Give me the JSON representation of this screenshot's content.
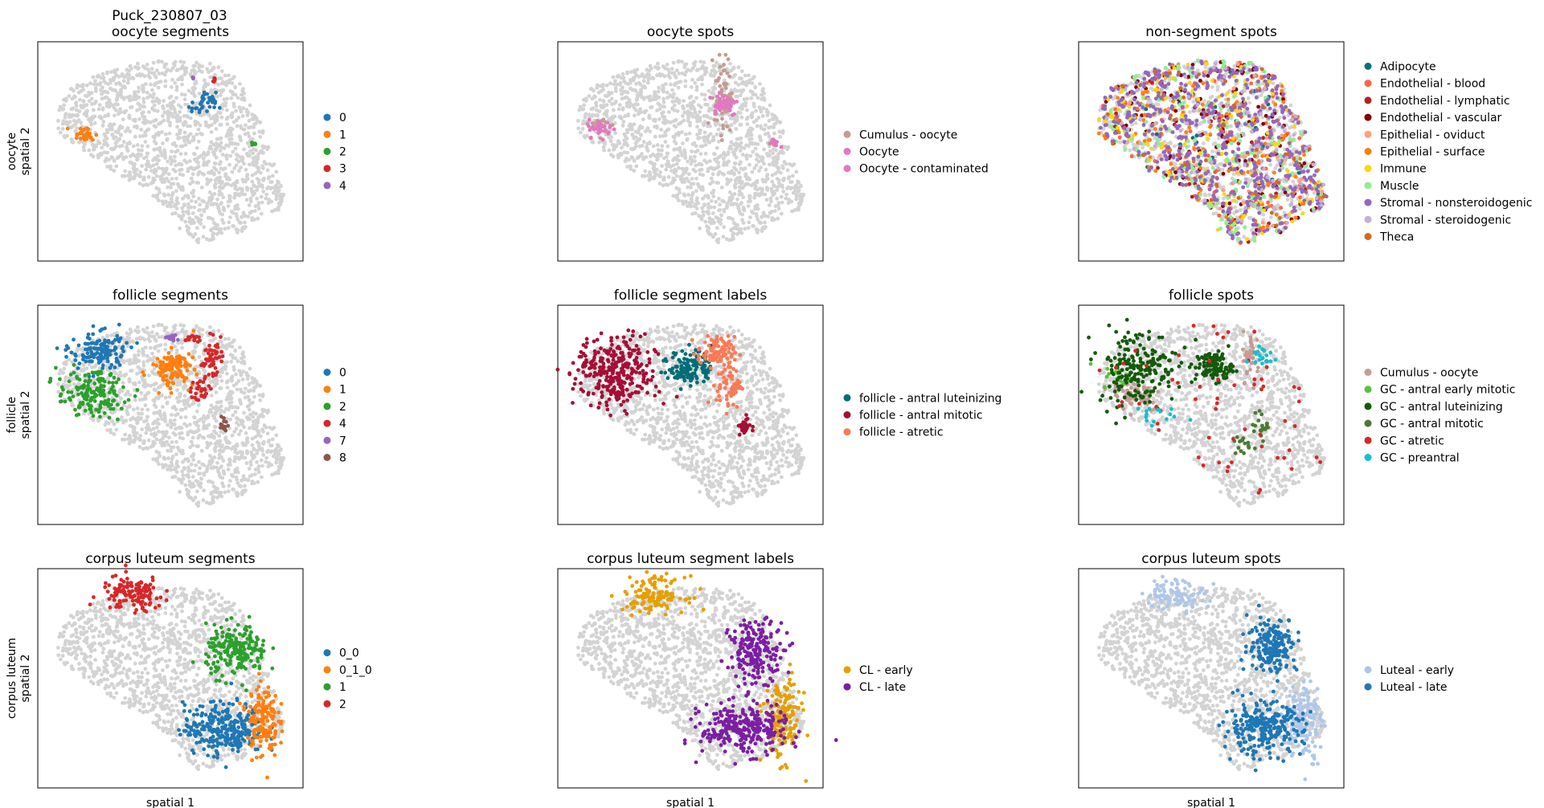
{
  "figure": {
    "suptitle": "Puck_230807_03",
    "background_color": "#d3d3d3",
    "xlabel": "spatial 1"
  },
  "chart_data": [
    {
      "type": "scatter",
      "id": "oocyte-segments",
      "title": "oocyte segments",
      "ylabel": "oocyte\nspatial 2",
      "xlabel": "",
      "grid": false,
      "legend_position": "right",
      "series": [
        {
          "name": "0",
          "color": "#1f77b4",
          "clusters": [
            {
              "x": 0.63,
              "y": 0.72,
              "rx": 0.04,
              "ry": 0.05,
              "n": 35
            }
          ]
        },
        {
          "name": "1",
          "color": "#ff7f0e",
          "clusters": [
            {
              "x": 0.16,
              "y": 0.58,
              "rx": 0.04,
              "ry": 0.03,
              "n": 30
            }
          ]
        },
        {
          "name": "2",
          "color": "#2ca02c",
          "clusters": [
            {
              "x": 0.83,
              "y": 0.54,
              "rx": 0.01,
              "ry": 0.01,
              "n": 6
            }
          ]
        },
        {
          "name": "3",
          "color": "#d62728",
          "clusters": [
            {
              "x": 0.67,
              "y": 0.84,
              "rx": 0.01,
              "ry": 0.02,
              "n": 5
            }
          ]
        },
        {
          "name": "4",
          "color": "#9467bd",
          "clusters": [
            {
              "x": 0.59,
              "y": 0.85,
              "rx": 0.006,
              "ry": 0.006,
              "n": 3
            }
          ]
        }
      ]
    },
    {
      "type": "scatter",
      "id": "oocyte-spots",
      "title": "oocyte spots",
      "ylabel": "",
      "xlabel": "",
      "grid": false,
      "legend_position": "right",
      "series": [
        {
          "name": "Cumulus - oocyte",
          "color": "#c49c94",
          "clusters": [
            {
              "x": 0.63,
              "y": 0.77,
              "rx": 0.03,
              "ry": 0.15,
              "n": 70
            },
            {
              "x": 0.16,
              "y": 0.62,
              "rx": 0.04,
              "ry": 0.04,
              "n": 20
            },
            {
              "x": 0.82,
              "y": 0.54,
              "rx": 0.02,
              "ry": 0.02,
              "n": 8
            }
          ]
        },
        {
          "name": "Oocyte",
          "color": "#e377c2",
          "clusters": [
            {
              "x": 0.63,
              "y": 0.73,
              "rx": 0.05,
              "ry": 0.05,
              "n": 40
            },
            {
              "x": 0.15,
              "y": 0.61,
              "rx": 0.04,
              "ry": 0.035,
              "n": 35
            },
            {
              "x": 0.83,
              "y": 0.54,
              "rx": 0.015,
              "ry": 0.015,
              "n": 10
            }
          ]
        },
        {
          "name": "Oocyte - contaminated",
          "color": "#e377c2",
          "clusters": []
        }
      ]
    },
    {
      "type": "scatter",
      "id": "non-segment-spots",
      "title": "non-segment spots",
      "ylabel": "",
      "xlabel": "",
      "grid": false,
      "legend_position": "right",
      "series": [
        {
          "name": "Adipocyte",
          "color": "#00737a",
          "scatter": 40
        },
        {
          "name": "Endothelial - blood",
          "color": "#ff6347",
          "scatter": 120
        },
        {
          "name": "Endothelial - lymphatic",
          "color": "#b22222",
          "scatter": 60
        },
        {
          "name": "Endothelial - vascular",
          "color": "#800000",
          "scatter": 150
        },
        {
          "name": "Epithelial - oviduct",
          "color": "#ffa07a",
          "scatter": 60
        },
        {
          "name": "Epithelial - surface",
          "color": "#ff7f0e",
          "scatter": 200
        },
        {
          "name": "Immune",
          "color": "#ffd700",
          "scatter": 180
        },
        {
          "name": "Muscle",
          "color": "#90ee90",
          "scatter": 220
        },
        {
          "name": "Stromal - nonsteroidogenic",
          "color": "#9467bd",
          "scatter": 600
        },
        {
          "name": "Stromal - steroidogenic",
          "color": "#c5b0d5",
          "scatter": 100
        },
        {
          "name": "Theca",
          "color": "#d2691e",
          "scatter": 40
        }
      ]
    },
    {
      "type": "scatter",
      "id": "follicle-segments",
      "title": "follicle segments",
      "ylabel": "follicle\nspatial 2",
      "xlabel": "",
      "grid": false,
      "legend_position": "right",
      "series": [
        {
          "name": "0",
          "color": "#1f77b4",
          "clusters": [
            {
              "x": 0.22,
              "y": 0.8,
              "rx": 0.09,
              "ry": 0.08,
              "n": 140
            }
          ]
        },
        {
          "name": "1",
          "color": "#ff7f0e",
          "clusters": [
            {
              "x": 0.51,
              "y": 0.72,
              "rx": 0.07,
              "ry": 0.07,
              "n": 120
            }
          ]
        },
        {
          "name": "2",
          "color": "#2ca02c",
          "clusters": [
            {
              "x": 0.19,
              "y": 0.6,
              "rx": 0.11,
              "ry": 0.09,
              "n": 160
            }
          ]
        },
        {
          "name": "4",
          "color": "#d62728",
          "clusters": [
            {
              "x": 0.66,
              "y": 0.78,
              "rx": 0.03,
              "ry": 0.07,
              "n": 50
            },
            {
              "x": 0.62,
              "y": 0.62,
              "rx": 0.03,
              "ry": 0.05,
              "n": 30
            },
            {
              "x": 0.58,
              "y": 0.86,
              "rx": 0.03,
              "ry": 0.02,
              "n": 15
            }
          ]
        },
        {
          "name": "7",
          "color": "#9467bd",
          "clusters": [
            {
              "x": 0.51,
              "y": 0.87,
              "rx": 0.02,
              "ry": 0.015,
              "n": 15
            }
          ]
        },
        {
          "name": "8",
          "color": "#8c564b",
          "clusters": [
            {
              "x": 0.71,
              "y": 0.45,
              "rx": 0.015,
              "ry": 0.03,
              "n": 15
            }
          ]
        }
      ]
    },
    {
      "type": "scatter",
      "id": "follicle-segment-labels",
      "title": "follicle segment labels",
      "ylabel": "",
      "xlabel": "",
      "grid": false,
      "legend_position": "right",
      "series": [
        {
          "name": "follicle - antral luteinizing",
          "color": "#006d77",
          "clusters": [
            {
              "x": 0.5,
              "y": 0.73,
              "rx": 0.07,
              "ry": 0.07,
              "n": 130
            }
          ]
        },
        {
          "name": "follicle - antral mitotic",
          "color": "#a50f35",
          "clusters": [
            {
              "x": 0.21,
              "y": 0.7,
              "rx": 0.13,
              "ry": 0.14,
              "n": 320
            },
            {
              "x": 0.71,
              "y": 0.45,
              "rx": 0.02,
              "ry": 0.04,
              "n": 25
            }
          ]
        },
        {
          "name": "follicle - atretic",
          "color": "#fa7a55",
          "clusters": [
            {
              "x": 0.6,
              "y": 0.8,
              "rx": 0.06,
              "ry": 0.06,
              "n": 90
            },
            {
              "x": 0.65,
              "y": 0.65,
              "rx": 0.04,
              "ry": 0.1,
              "n": 70
            }
          ]
        }
      ]
    },
    {
      "type": "scatter",
      "id": "follicle-spots",
      "title": "follicle spots",
      "ylabel": "",
      "xlabel": "",
      "grid": false,
      "legend_position": "right",
      "series": [
        {
          "name": "Cumulus - oocyte",
          "color": "#c49c94",
          "clusters": [
            {
              "x": 0.21,
              "y": 0.6,
              "rx": 0.08,
              "ry": 0.07,
              "n": 60
            },
            {
              "x": 0.66,
              "y": 0.78,
              "rx": 0.03,
              "ry": 0.1,
              "n": 40
            }
          ]
        },
        {
          "name": "GC - antral early mitotic",
          "color": "#55c43c",
          "clusters": [
            {
              "x": 0.15,
              "y": 0.68,
              "rx": 0.06,
              "ry": 0.05,
              "n": 20
            }
          ]
        },
        {
          "name": "GC - antral luteinizing",
          "color": "#145a0a",
          "clusters": [
            {
              "x": 0.21,
              "y": 0.73,
              "rx": 0.13,
              "ry": 0.15,
              "n": 200
            },
            {
              "x": 0.51,
              "y": 0.73,
              "rx": 0.06,
              "ry": 0.06,
              "n": 110
            }
          ]
        },
        {
          "name": "GC - antral mitotic",
          "color": "#4a7a32",
          "clusters": [
            {
              "x": 0.7,
              "y": 0.45,
              "rx": 0.03,
              "ry": 0.05,
              "n": 20
            },
            {
              "x": 0.62,
              "y": 0.35,
              "rx": 0.03,
              "ry": 0.04,
              "n": 15
            }
          ]
        },
        {
          "name": "GC - atretic",
          "color": "#d62728",
          "scatter": 60
        },
        {
          "name": "GC - preantral",
          "color": "#17becf",
          "clusters": [
            {
              "x": 0.26,
              "y": 0.5,
              "rx": 0.08,
              "ry": 0.04,
              "n": 15
            },
            {
              "x": 0.7,
              "y": 0.78,
              "rx": 0.05,
              "ry": 0.05,
              "n": 20
            }
          ]
        }
      ]
    },
    {
      "type": "scatter",
      "id": "corpus-luteum-segments",
      "title": "corpus luteum segments",
      "ylabel": "corpus luteum\nspatial 2",
      "xlabel": "spatial 1",
      "grid": false,
      "legend_position": "right",
      "series": [
        {
          "name": "0_0",
          "color": "#1f77b4",
          "clusters": [
            {
              "x": 0.71,
              "y": 0.26,
              "rx": 0.13,
              "ry": 0.1,
              "n": 280
            }
          ]
        },
        {
          "name": "0_1_0",
          "color": "#ff7f0e",
          "clusters": [
            {
              "x": 0.86,
              "y": 0.3,
              "rx": 0.05,
              "ry": 0.15,
              "n": 150
            }
          ]
        },
        {
          "name": "1",
          "color": "#2ca02c",
          "clusters": [
            {
              "x": 0.76,
              "y": 0.63,
              "rx": 0.1,
              "ry": 0.1,
              "n": 200
            }
          ]
        },
        {
          "name": "2",
          "color": "#d62728",
          "clusters": [
            {
              "x": 0.35,
              "y": 0.9,
              "rx": 0.1,
              "ry": 0.07,
              "n": 130
            }
          ]
        }
      ]
    },
    {
      "type": "scatter",
      "id": "corpus-luteum-segment-labels",
      "title": "corpus luteum segment labels",
      "ylabel": "",
      "xlabel": "spatial 1",
      "grid": false,
      "legend_position": "right",
      "series": [
        {
          "name": "CL - early",
          "color": "#e69f00",
          "clusters": [
            {
              "x": 0.36,
              "y": 0.9,
              "rx": 0.1,
              "ry": 0.07,
              "n": 130
            },
            {
              "x": 0.86,
              "y": 0.3,
              "rx": 0.06,
              "ry": 0.16,
              "n": 160
            }
          ]
        },
        {
          "name": "CL - late",
          "color": "#7b1fa2",
          "clusters": [
            {
              "x": 0.71,
              "y": 0.26,
              "rx": 0.14,
              "ry": 0.1,
              "n": 280
            },
            {
              "x": 0.76,
              "y": 0.63,
              "rx": 0.09,
              "ry": 0.12,
              "n": 200
            }
          ]
        }
      ]
    },
    {
      "type": "scatter",
      "id": "corpus-luteum-spots",
      "title": "corpus luteum spots",
      "ylabel": "",
      "xlabel": "spatial 1",
      "grid": false,
      "legend_position": "right",
      "series": [
        {
          "name": "Luteal - early",
          "color": "#aec7e8",
          "clusters": [
            {
              "x": 0.36,
              "y": 0.9,
              "rx": 0.1,
              "ry": 0.06,
              "n": 100
            },
            {
              "x": 0.86,
              "y": 0.3,
              "rx": 0.06,
              "ry": 0.16,
              "n": 150
            }
          ]
        },
        {
          "name": "Luteal - late",
          "color": "#1f77b4",
          "clusters": [
            {
              "x": 0.7,
              "y": 0.26,
              "rx": 0.13,
              "ry": 0.1,
              "n": 260
            },
            {
              "x": 0.74,
              "y": 0.66,
              "rx": 0.08,
              "ry": 0.11,
              "n": 190
            }
          ]
        }
      ]
    }
  ]
}
